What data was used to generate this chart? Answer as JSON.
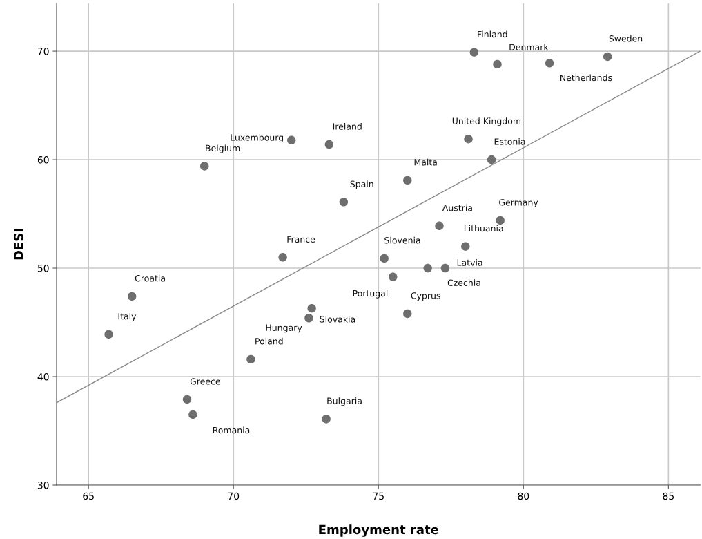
{
  "chart_data": {
    "type": "scatter",
    "xlabel": "Employment rate",
    "ylabel": "DESI",
    "xlim": [
      63.9,
      86.1
    ],
    "ylim": [
      30,
      74.4
    ],
    "xticks": [
      65,
      70,
      75,
      80,
      85
    ],
    "yticks": [
      30,
      40,
      50,
      60,
      70
    ],
    "grid": true,
    "series": [
      {
        "marker": "circle",
        "color": "#6e6e6e",
        "x": [
          78.3,
          79.1,
          80.9,
          82.9,
          78.1,
          78.9,
          76.0,
          77.1,
          79.2,
          72.0,
          73.3,
          69.0,
          73.8,
          78.0,
          75.2,
          77.3,
          76.7,
          75.5,
          76.0,
          71.7,
          66.5,
          65.7,
          72.7,
          72.6,
          70.6,
          68.4,
          68.6,
          73.2
        ],
        "values": [
          69.9,
          68.8,
          68.9,
          69.5,
          61.9,
          60.0,
          58.1,
          53.9,
          54.4,
          61.8,
          61.4,
          59.4,
          56.1,
          52.0,
          50.9,
          50.0,
          50.0,
          49.2,
          45.8,
          51.0,
          47.4,
          43.9,
          46.3,
          45.4,
          41.6,
          37.9,
          36.5,
          36.1
        ]
      },
      {
        "type": "line",
        "color": "#8a8a8a",
        "x": [
          63.9,
          86.1
        ],
        "values": [
          37.6,
          70.0
        ]
      }
    ],
    "annotations": [
      {
        "text": "Finland",
        "x": 78.3,
        "y": 69.9
      },
      {
        "text": "Denmark",
        "x": 79.1,
        "y": 68.8
      },
      {
        "text": "Netherlands",
        "x": 80.9,
        "y": 68.9
      },
      {
        "text": "Sweden",
        "x": 82.9,
        "y": 69.5
      },
      {
        "text": "United Kingdom",
        "x": 78.1,
        "y": 61.9
      },
      {
        "text": "Estonia",
        "x": 78.9,
        "y": 60.0
      },
      {
        "text": "Malta",
        "x": 76.0,
        "y": 58.1
      },
      {
        "text": "Austria",
        "x": 77.1,
        "y": 53.9
      },
      {
        "text": "Germany",
        "x": 79.2,
        "y": 54.4
      },
      {
        "text": "Luxembourg",
        "x": 72.0,
        "y": 61.8
      },
      {
        "text": "Ireland",
        "x": 73.3,
        "y": 61.4
      },
      {
        "text": "Belgium",
        "x": 69.0,
        "y": 59.4
      },
      {
        "text": "Spain",
        "x": 73.8,
        "y": 56.1
      },
      {
        "text": "Lithuania",
        "x": 78.0,
        "y": 52.0
      },
      {
        "text": "Slovenia",
        "x": 75.2,
        "y": 50.9
      },
      {
        "text": "Latvia",
        "x": 77.3,
        "y": 50.0
      },
      {
        "text": "Czechia",
        "x": 76.7,
        "y": 50.0
      },
      {
        "text": "Portugal",
        "x": 75.5,
        "y": 49.2
      },
      {
        "text": "Cyprus",
        "x": 76.0,
        "y": 45.8
      },
      {
        "text": "France",
        "x": 71.7,
        "y": 51.0
      },
      {
        "text": "Croatia",
        "x": 66.5,
        "y": 47.4
      },
      {
        "text": "Italy",
        "x": 65.7,
        "y": 43.9
      },
      {
        "text": "Hungary",
        "x": 72.7,
        "y": 46.3
      },
      {
        "text": "Slovakia",
        "x": 72.6,
        "y": 45.4
      },
      {
        "text": "Poland",
        "x": 70.6,
        "y": 41.6
      },
      {
        "text": "Greece",
        "x": 68.4,
        "y": 37.9
      },
      {
        "text": "Romania",
        "x": 68.6,
        "y": 36.5
      },
      {
        "text": "Bulgaria",
        "x": 73.2,
        "y": 36.1
      }
    ]
  }
}
